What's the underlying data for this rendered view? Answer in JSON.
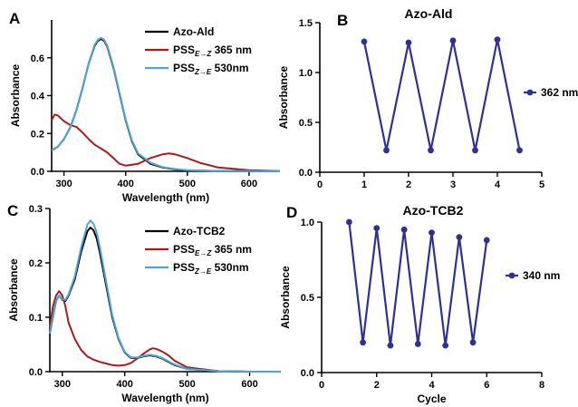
{
  "chart_data": [
    {
      "panel": "A",
      "type": "line",
      "xlabel": "Wavelength (nm)",
      "ylabel": "Absorbance",
      "xlim": [
        280,
        650
      ],
      "ylim": [
        0,
        0.8
      ],
      "xticks": [
        300,
        400,
        500,
        600
      ],
      "yticks": [
        0.0,
        0.2,
        0.4,
        0.6
      ],
      "legend_position": "top-right",
      "series": [
        {
          "label_main": "Azo-Ald",
          "label_sub": "",
          "label_after": "",
          "color": "#000000",
          "x": [
            280,
            290,
            300,
            310,
            320,
            330,
            340,
            350,
            355,
            360,
            365,
            370,
            380,
            390,
            400,
            410,
            420,
            440,
            460,
            480,
            500,
            550,
            600,
            650
          ],
          "y": [
            0.11,
            0.13,
            0.17,
            0.23,
            0.32,
            0.44,
            0.57,
            0.665,
            0.69,
            0.7,
            0.69,
            0.66,
            0.55,
            0.41,
            0.27,
            0.16,
            0.09,
            0.04,
            0.02,
            0.01,
            0.005,
            0.002,
            0.001,
            0.0
          ]
        },
        {
          "label_main": "PSS",
          "label_sub": "E→Z",
          "label_after": " 365 nm",
          "color": "#a81c1c",
          "x": [
            280,
            285,
            290,
            300,
            310,
            320,
            330,
            340,
            350,
            360,
            370,
            380,
            390,
            400,
            420,
            440,
            460,
            470,
            480,
            500,
            520,
            550,
            600,
            650
          ],
          "y": [
            0.27,
            0.3,
            0.295,
            0.265,
            0.245,
            0.235,
            0.205,
            0.17,
            0.14,
            0.12,
            0.1,
            0.07,
            0.04,
            0.03,
            0.04,
            0.07,
            0.09,
            0.095,
            0.09,
            0.07,
            0.045,
            0.02,
            0.006,
            0.001
          ]
        },
        {
          "label_main": "PSS",
          "label_sub": "Z→E",
          "label_after": " 530nm",
          "color": "#4ca6d1",
          "x": [
            280,
            290,
            300,
            310,
            320,
            330,
            340,
            350,
            355,
            360,
            365,
            370,
            380,
            390,
            400,
            410,
            420,
            440,
            460,
            480,
            500,
            550,
            600,
            650
          ],
          "y": [
            0.11,
            0.13,
            0.17,
            0.23,
            0.32,
            0.44,
            0.57,
            0.67,
            0.695,
            0.705,
            0.695,
            0.665,
            0.555,
            0.415,
            0.275,
            0.165,
            0.095,
            0.045,
            0.022,
            0.012,
            0.006,
            0.002,
            0.001,
            0.0
          ]
        }
      ]
    },
    {
      "panel": "B",
      "type": "line",
      "title": "Azo-Ald",
      "xlabel": "",
      "ylabel": "Absorbance",
      "xlim": [
        0,
        5
      ],
      "ylim": [
        0,
        1.5
      ],
      "xticks": [
        0,
        1,
        2,
        3,
        4,
        5
      ],
      "yticks": [
        0.0,
        0.5,
        1.0,
        1.5
      ],
      "legend_position": "right",
      "series": [
        {
          "label_main": "362 nm",
          "label_sub": "",
          "label_after": "",
          "color": "#2e3192",
          "markers": true,
          "x": [
            1,
            1.5,
            2,
            2.5,
            3,
            3.5,
            4,
            4.5
          ],
          "y": [
            1.31,
            0.22,
            1.3,
            0.22,
            1.32,
            0.22,
            1.33,
            0.22
          ]
        }
      ]
    },
    {
      "panel": "C",
      "type": "line",
      "xlabel": "Wavelength (nm)",
      "ylabel": "Absorbance",
      "xlim": [
        280,
        650
      ],
      "ylim": [
        0,
        0.3
      ],
      "xticks": [
        300,
        400,
        500,
        600
      ],
      "yticks": [
        0.0,
        0.1,
        0.2,
        0.3
      ],
      "legend_position": "top-right",
      "series": [
        {
          "label_main": "Azo-TCB2",
          "label_sub": "",
          "label_after": "",
          "color": "#000000",
          "x": [
            280,
            285,
            290,
            295,
            300,
            305,
            310,
            320,
            330,
            340,
            345,
            350,
            355,
            360,
            370,
            380,
            390,
            400,
            410,
            420,
            430,
            440,
            450,
            460,
            470,
            480,
            500,
            550,
            600,
            650
          ],
          "y": [
            0.07,
            0.1,
            0.13,
            0.14,
            0.132,
            0.13,
            0.14,
            0.17,
            0.22,
            0.258,
            0.265,
            0.26,
            0.245,
            0.22,
            0.16,
            0.1,
            0.06,
            0.035,
            0.025,
            0.025,
            0.028,
            0.03,
            0.028,
            0.024,
            0.018,
            0.012,
            0.005,
            0.001,
            0.0,
            0.0
          ]
        },
        {
          "label_main": "PSS",
          "label_sub": "E→Z",
          "label_after": " 365 nm",
          "color": "#a81c1c",
          "x": [
            280,
            285,
            290,
            295,
            300,
            305,
            310,
            320,
            330,
            340,
            350,
            360,
            370,
            380,
            390,
            400,
            410,
            420,
            430,
            440,
            445,
            450,
            460,
            470,
            480,
            500,
            550,
            600,
            650
          ],
          "y": [
            0.08,
            0.12,
            0.14,
            0.148,
            0.14,
            0.12,
            0.09,
            0.06,
            0.04,
            0.028,
            0.022,
            0.018,
            0.015,
            0.012,
            0.011,
            0.012,
            0.016,
            0.024,
            0.033,
            0.041,
            0.043,
            0.042,
            0.037,
            0.03,
            0.02,
            0.008,
            0.001,
            0.0,
            0.0
          ]
        },
        {
          "label_main": "PSS",
          "label_sub": "Z→E",
          "label_after": " 530nm",
          "color": "#4ca6d1",
          "x": [
            280,
            285,
            290,
            295,
            300,
            305,
            310,
            320,
            330,
            340,
            345,
            350,
            355,
            360,
            370,
            380,
            390,
            400,
            410,
            420,
            430,
            440,
            450,
            460,
            470,
            480,
            500,
            550,
            600,
            650
          ],
          "y": [
            0.07,
            0.1,
            0.13,
            0.14,
            0.133,
            0.132,
            0.142,
            0.175,
            0.228,
            0.27,
            0.278,
            0.272,
            0.256,
            0.23,
            0.167,
            0.104,
            0.062,
            0.036,
            0.026,
            0.026,
            0.029,
            0.031,
            0.029,
            0.025,
            0.019,
            0.013,
            0.005,
            0.001,
            0.0,
            0.0
          ]
        }
      ]
    },
    {
      "panel": "D",
      "type": "line",
      "title": "Azo-TCB2",
      "xlabel": "Cycle",
      "ylabel": "Absorbance",
      "xlim": [
        0,
        8
      ],
      "ylim": [
        0,
        1.0
      ],
      "xticks": [
        0,
        2,
        4,
        6,
        8
      ],
      "yticks": [
        0.0,
        0.5,
        1.0
      ],
      "legend_position": "right",
      "series": [
        {
          "label_main": "340 nm",
          "label_sub": "",
          "label_after": "",
          "color": "#2e3192",
          "markers": true,
          "x": [
            1,
            1.5,
            2,
            2.5,
            3,
            3.5,
            4,
            4.5,
            5,
            5.5,
            6
          ],
          "y": [
            1.0,
            0.2,
            0.96,
            0.18,
            0.95,
            0.19,
            0.93,
            0.18,
            0.9,
            0.2,
            0.88
          ]
        }
      ]
    }
  ]
}
